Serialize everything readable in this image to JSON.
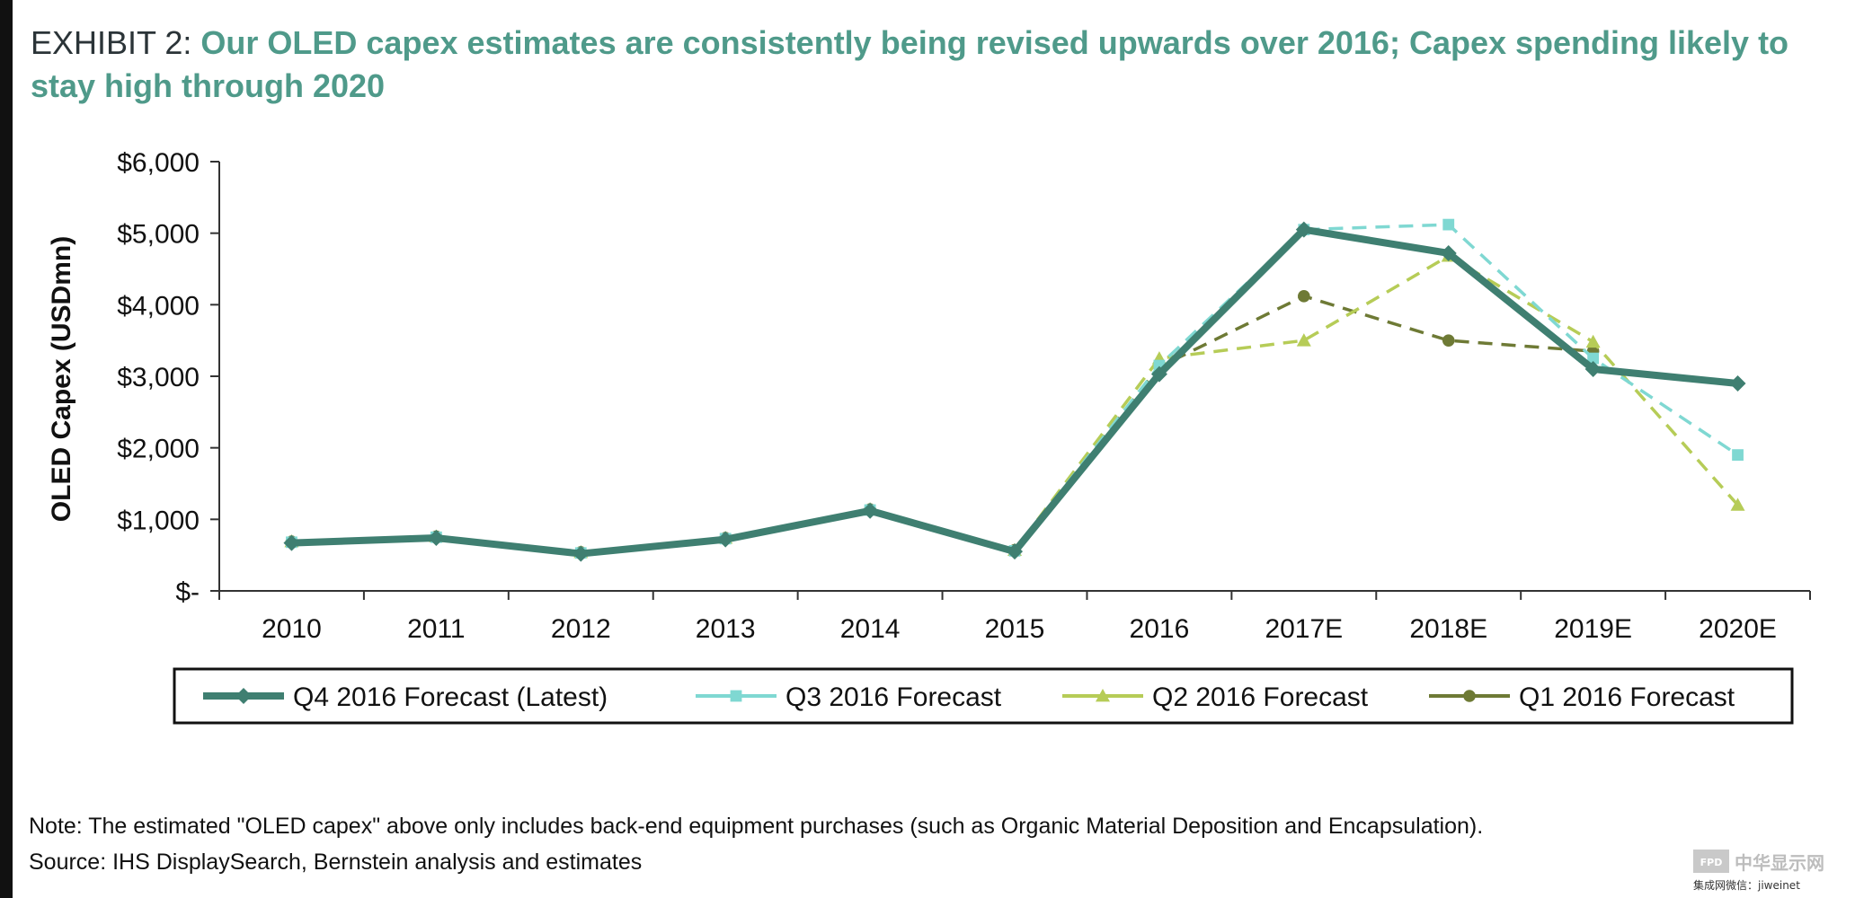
{
  "title": {
    "prefix": "EXHIBIT 2: ",
    "headline": "Our OLED capex estimates are consistently being revised upwards over 2016; Capex spending likely to stay high through 2020"
  },
  "chart_data": {
    "type": "line",
    "title": "",
    "xlabel": "",
    "ylabel": "OLED Capex (USDmn)",
    "categories": [
      "2010",
      "2011",
      "2012",
      "2013",
      "2014",
      "2015",
      "2016",
      "2017E",
      "2018E",
      "2019E",
      "2020E"
    ],
    "ylim": [
      0,
      6000
    ],
    "yticks": [
      0,
      1000,
      2000,
      3000,
      4000,
      5000,
      6000
    ],
    "ytick_labels": [
      "$-",
      "$1,000",
      "$2,000",
      "$3,000",
      "$4,000",
      "$5,000",
      "$6,000"
    ],
    "grid": false,
    "legend_position": "bottom",
    "series": [
      {
        "name": "Q4 2016 Forecast (Latest)",
        "color": "#3f7f71",
        "style": "solid",
        "marker": "diamond",
        "values": [
          670,
          740,
          520,
          720,
          1120,
          550,
          3030,
          5050,
          4720,
          3100,
          2900
        ]
      },
      {
        "name": "Q3 2016 Forecast",
        "color": "#7fd8d2",
        "style": "dashed",
        "marker": "square",
        "values": [
          680,
          750,
          530,
          730,
          1130,
          560,
          3150,
          5050,
          5120,
          3250,
          1900
        ]
      },
      {
        "name": "Q2 2016 Forecast",
        "color": "#b6cc57",
        "style": "dashed",
        "marker": "triangle",
        "values": [
          690,
          760,
          540,
          740,
          1140,
          570,
          3250,
          3500,
          4680,
          3480,
          1200
        ]
      },
      {
        "name": "Q1 2016 Forecast",
        "color": "#6e7a35",
        "style": "dashed",
        "marker": "circle",
        "values": [
          690,
          760,
          540,
          740,
          1140,
          570,
          3130,
          4120,
          3500,
          3350,
          null
        ]
      }
    ]
  },
  "note": "Note: The estimated \"OLED capex\" above only includes back-end equipment purchases (such as Organic Material Deposition and Encapsulation).",
  "source": "Source: IHS DisplaySearch, Bernstein analysis and estimates",
  "watermark": {
    "badge": "FPD",
    "name": "中华显示网",
    "subtitle": "集成网微信：jiweinet"
  }
}
